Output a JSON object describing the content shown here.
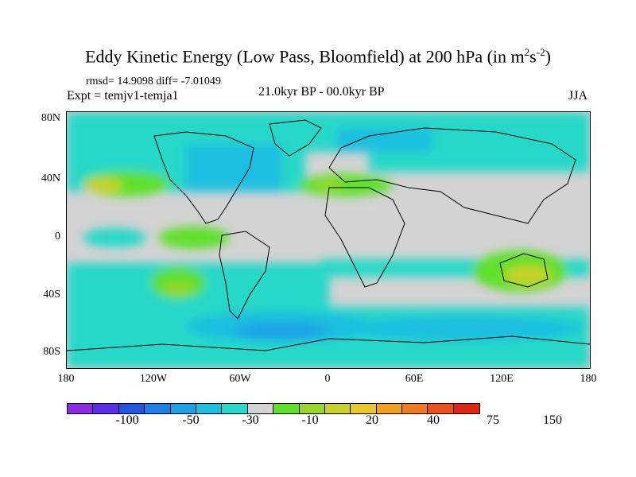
{
  "title": {
    "main": "Eddy Kinetic Energy (Low Pass, Bloomfield) at 200 hPa (in m",
    "sup1": "2",
    "mid": "s",
    "sup2": "-2",
    "end": ")"
  },
  "stats": "rmsd= 14.9098 diff= -7.01049",
  "expt": "Expt = temjv1-temja1",
  "period": "21.0kyr BP - 00.0kyr BP",
  "season": "JJA",
  "y_axis_labels": [
    "80N",
    "40N",
    "0",
    "40S",
    "80S"
  ],
  "x_axis_labels": [
    "180",
    "120W",
    "60W",
    "0",
    "60E",
    "120E",
    "180"
  ],
  "colorbar": {
    "colors": [
      "#8a2be2",
      "#5a2ee6",
      "#1f55e0",
      "#1f7fe6",
      "#1fa0e6",
      "#1fbfdf",
      "#28d8c8",
      "#d3d3d3",
      "#5ee02a",
      "#9ad62a",
      "#c8d22a",
      "#e6c82a",
      "#f0a020",
      "#f07a1f",
      "#e8501c",
      "#dc2810"
    ],
    "labels": [
      "-100",
      "-50",
      "-30",
      "-10",
      "20",
      "40",
      "75",
      "150"
    ]
  },
  "chart_data": {
    "type": "heatmap",
    "projection": "cylindrical-equidistant",
    "lon_range": [
      -180,
      180
    ],
    "lat_range": [
      -90,
      90
    ],
    "variable": "eddy kinetic energy difference",
    "levels": [
      -100,
      -50,
      -30,
      -10,
      20,
      40,
      75,
      150
    ],
    "features": {
      "northern_jet_40N": "positive anomalies 20-40 over N Pacific, N Atlantic and Mediterranean",
      "tropics": "near zero (-10 to 10) grey band",
      "southern_ocean_60S": "negative anomalies -10 to -50",
      "australia_30S": "positive anomalies 20-40"
    }
  }
}
